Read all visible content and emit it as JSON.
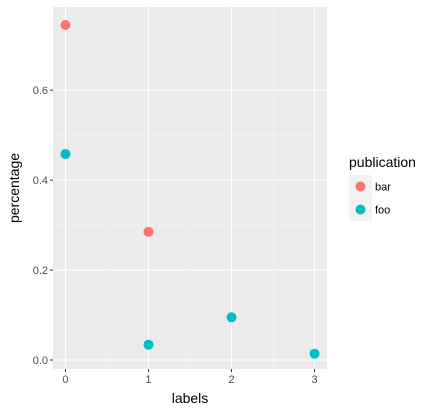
{
  "chart_data": {
    "type": "scatter",
    "title": "",
    "xlabel": "labels",
    "ylabel": "percentage",
    "xlim": [
      -0.15,
      3.15
    ],
    "ylim": [
      -0.02,
      0.785
    ],
    "x_ticks": [
      0,
      1,
      2,
      3
    ],
    "x_tick_labels": [
      "0",
      "1",
      "2",
      "3"
    ],
    "y_ticks": [
      0.0,
      0.2,
      0.4,
      0.6
    ],
    "y_tick_labels": [
      "0.0",
      "0.2",
      "0.4",
      "0.6"
    ],
    "grid": true,
    "legend": {
      "title": "publication",
      "position": "right"
    },
    "series": [
      {
        "name": "bar",
        "color": "#F8766D",
        "points": [
          {
            "x": 0,
            "y": 0.745
          },
          {
            "x": 1,
            "y": 0.285
          }
        ]
      },
      {
        "name": "foo",
        "color": "#00BFC4",
        "points": [
          {
            "x": 0,
            "y": 0.458
          },
          {
            "x": 1,
            "y": 0.034
          },
          {
            "x": 2,
            "y": 0.095
          },
          {
            "x": 3,
            "y": 0.014
          }
        ]
      }
    ]
  }
}
